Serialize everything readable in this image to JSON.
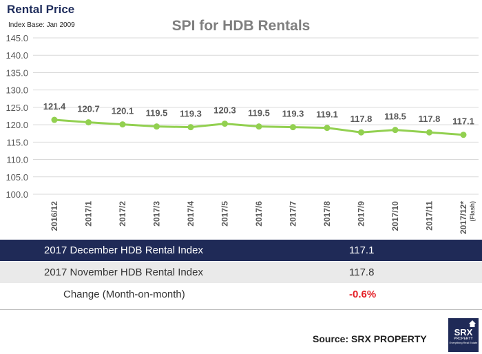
{
  "header": {
    "title": "Rental Price",
    "subtitle": "Index Base: Jan 2009"
  },
  "chart_data": {
    "type": "line",
    "title": "SPI for HDB Rentals",
    "categories": [
      "2016/12",
      "2017/1",
      "2017/2",
      "2017/3",
      "2017/4",
      "2017/5",
      "2017/6",
      "2017/7",
      "2017/8",
      "2017/9",
      "2017/10",
      "2017/11",
      "2017/12*"
    ],
    "category_notes": {
      "2017/12*": "(Flash)"
    },
    "values": [
      121.4,
      120.7,
      120.1,
      119.5,
      119.3,
      120.3,
      119.5,
      119.3,
      119.1,
      117.8,
      118.5,
      117.8,
      117.1
    ],
    "value_labels": [
      "121.4",
      "120.7",
      "120.1",
      "119.5",
      "119.3",
      "120.3",
      "119.5",
      "119.3",
      "119.1",
      "117.8",
      "118.5",
      "117.8",
      "117.1"
    ],
    "y_ticks": [
      "100.0",
      "105.0",
      "110.0",
      "115.0",
      "120.0",
      "125.0",
      "130.0",
      "135.0",
      "140.0",
      "145.0"
    ],
    "ylim": [
      100,
      145
    ],
    "grid": true,
    "line_color": "#92d050"
  },
  "table": {
    "rows": [
      {
        "label": "2017 December HDB Rental Index",
        "value": "117.1"
      },
      {
        "label": "2017 November HDB Rental Index",
        "value": "117.8"
      },
      {
        "label": "Change (Month-on-month)",
        "value": "-0.6%"
      }
    ],
    "header_color": "#1f2a57",
    "change_color": "#e41e26"
  },
  "footer": {
    "source": "Source:  SRX PROPERTY",
    "logo_main": "SRX",
    "logo_sub": "PROPERTY",
    "logo_tagline": "Everything Real Estate"
  }
}
